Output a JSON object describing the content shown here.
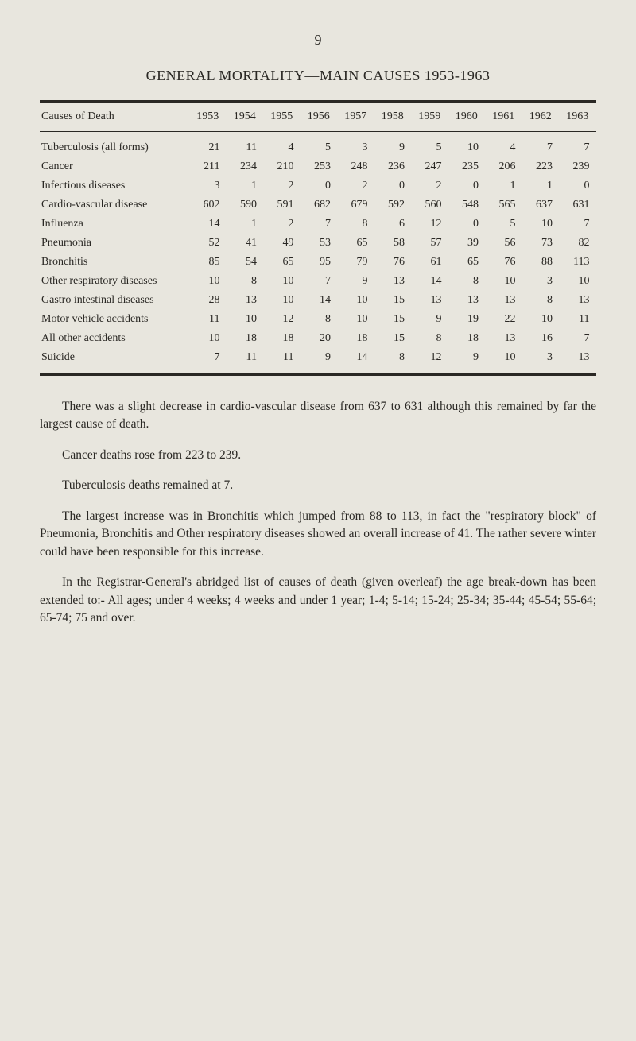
{
  "page_number": "9",
  "title": "GENERAL MORTALITY—MAIN CAUSES 1953-1963",
  "table": {
    "cause_header": "Causes of Death",
    "years": [
      "1953",
      "1954",
      "1955",
      "1956",
      "1957",
      "1958",
      "1959",
      "1960",
      "1961",
      "1962",
      "1963"
    ],
    "rows": [
      {
        "cause": "Tuberculosis (all forms)",
        "values": [
          "21",
          "11",
          "4",
          "5",
          "3",
          "9",
          "5",
          "10",
          "4",
          "7",
          "7"
        ]
      },
      {
        "cause": "Cancer",
        "values": [
          "211",
          "234",
          "210",
          "253",
          "248",
          "236",
          "247",
          "235",
          "206",
          "223",
          "239"
        ]
      },
      {
        "cause": "Infectious diseases",
        "values": [
          "3",
          "1",
          "2",
          "0",
          "2",
          "0",
          "2",
          "0",
          "1",
          "1",
          "0"
        ]
      },
      {
        "cause": "Cardio-vascular disease",
        "values": [
          "602",
          "590",
          "591",
          "682",
          "679",
          "592",
          "560",
          "548",
          "565",
          "637",
          "631"
        ]
      },
      {
        "cause": "Influenza",
        "values": [
          "14",
          "1",
          "2",
          "7",
          "8",
          "6",
          "12",
          "0",
          "5",
          "10",
          "7"
        ]
      },
      {
        "cause": "Pneumonia",
        "values": [
          "52",
          "41",
          "49",
          "53",
          "65",
          "58",
          "57",
          "39",
          "56",
          "73",
          "82"
        ]
      },
      {
        "cause": "Bronchitis",
        "values": [
          "85",
          "54",
          "65",
          "95",
          "79",
          "76",
          "61",
          "65",
          "76",
          "88",
          "113"
        ]
      },
      {
        "cause": "Other respiratory diseases",
        "values": [
          "10",
          "8",
          "10",
          "7",
          "9",
          "13",
          "14",
          "8",
          "10",
          "3",
          "10"
        ]
      },
      {
        "cause": "Gastro intestinal diseases",
        "values": [
          "28",
          "13",
          "10",
          "14",
          "10",
          "15",
          "13",
          "13",
          "13",
          "8",
          "13"
        ]
      },
      {
        "cause": "Motor vehicle accidents",
        "values": [
          "11",
          "10",
          "12",
          "8",
          "10",
          "15",
          "9",
          "19",
          "22",
          "10",
          "11"
        ]
      },
      {
        "cause": "All other accidents",
        "values": [
          "10",
          "18",
          "18",
          "20",
          "18",
          "15",
          "8",
          "18",
          "13",
          "16",
          "7"
        ]
      },
      {
        "cause": "Suicide",
        "values": [
          "7",
          "11",
          "11",
          "9",
          "14",
          "8",
          "12",
          "9",
          "10",
          "3",
          "13"
        ]
      }
    ]
  },
  "paragraphs": [
    "There was a slight decrease in cardio-vascular disease from 637 to 631 although this remained by far the largest cause of death.",
    "Cancer deaths rose from 223 to 239.",
    "Tuberculosis deaths remained at 7.",
    "The largest increase was in Bronchitis which jumped from 88 to 113, in fact the \"respiratory block\" of Pneumonia, Bronchitis and Other respiratory diseases showed an overall increase of 41. The rather severe winter could have been responsible for this increase.",
    "In the Registrar-General's abridged list of causes of death (given overleaf) the age break-down has been extended to:- All ages; under 4 weeks; 4 weeks and under 1 year; 1-4; 5-14; 15-24; 25-34; 35-44; 45-54; 55-64; 65-74; 75 and over."
  ],
  "colors": {
    "background": "#e8e6de",
    "text": "#2a2824",
    "border": "#2a2824"
  },
  "fonts": {
    "body_size": 15.5,
    "table_size": 14,
    "title_size": 18
  }
}
